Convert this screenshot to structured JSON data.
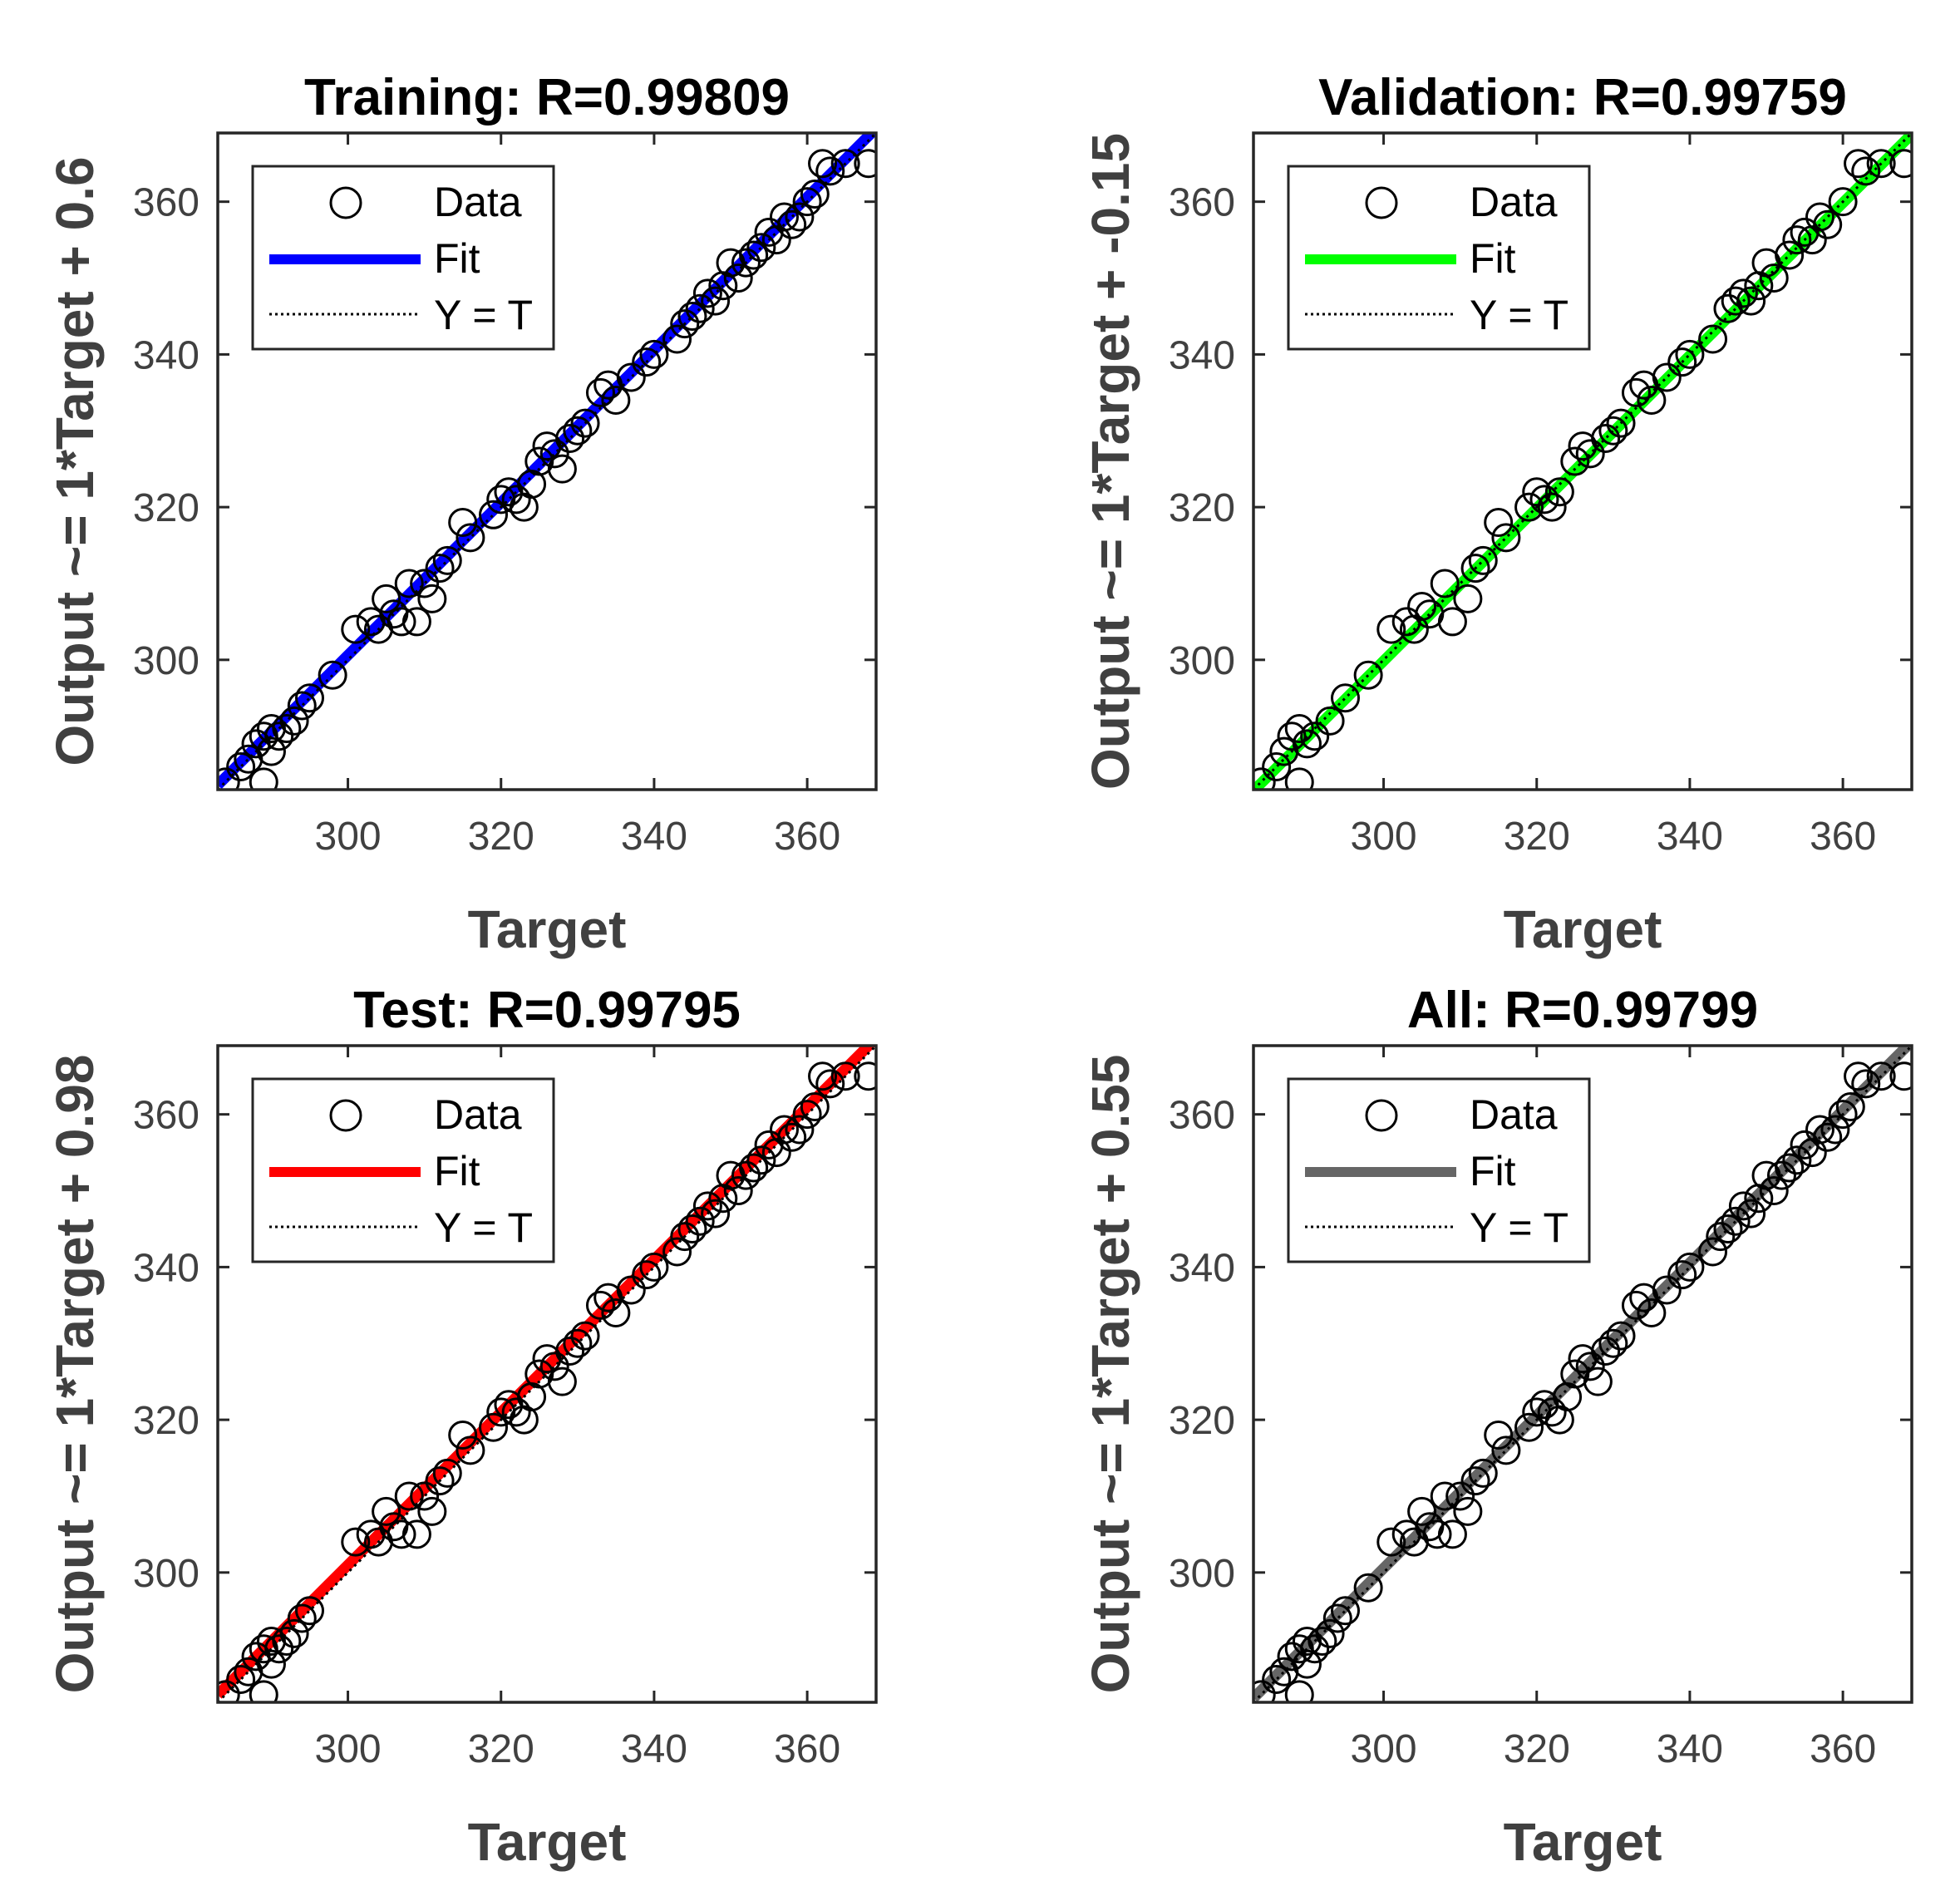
{
  "chart_data": [
    {
      "type": "scatter",
      "title": "Training: R=0.99809",
      "xlabel": "Target",
      "ylabel": "Output ~= 1*Target + 0.6",
      "xlim": [
        283,
        369
      ],
      "ylim": [
        283,
        369
      ],
      "xticks": [
        "300",
        "320",
        "340",
        "360"
      ],
      "yticks": [
        "300",
        "320",
        "340",
        "360"
      ],
      "fit_color": "#0000ff",
      "fit": {
        "slope": 1,
        "intercept": 0.6
      },
      "legend": [
        "Data",
        "Fit",
        "Y = T"
      ],
      "legend_position": "top-left",
      "points": [
        [
          284,
          284
        ],
        [
          286,
          286
        ],
        [
          287,
          287
        ],
        [
          288,
          289
        ],
        [
          289,
          290
        ],
        [
          290,
          291
        ],
        [
          291,
          290
        ],
        [
          290,
          288
        ],
        [
          289,
          284
        ],
        [
          292,
          291
        ],
        [
          293,
          292
        ],
        [
          294,
          294
        ],
        [
          295,
          295
        ],
        [
          298,
          298
        ],
        [
          301,
          304
        ],
        [
          303,
          305
        ],
        [
          304,
          304
        ],
        [
          305,
          308
        ],
        [
          306,
          306
        ],
        [
          307,
          305
        ],
        [
          308,
          310
        ],
        [
          309,
          305
        ],
        [
          310,
          310
        ],
        [
          311,
          308
        ],
        [
          312,
          312
        ],
        [
          313,
          313
        ],
        [
          315,
          318
        ],
        [
          316,
          316
        ],
        [
          319,
          319
        ],
        [
          320,
          321
        ],
        [
          321,
          322
        ],
        [
          322,
          321
        ],
        [
          323,
          320
        ],
        [
          324,
          323
        ],
        [
          325,
          326
        ],
        [
          326,
          328
        ],
        [
          327,
          327
        ],
        [
          328,
          325
        ],
        [
          329,
          329
        ],
        [
          330,
          330
        ],
        [
          331,
          331
        ],
        [
          333,
          335
        ],
        [
          334,
          336
        ],
        [
          335,
          334
        ],
        [
          337,
          337
        ],
        [
          339,
          339
        ],
        [
          340,
          340
        ],
        [
          343,
          342
        ],
        [
          344,
          344
        ],
        [
          345,
          345
        ],
        [
          346,
          346
        ],
        [
          347,
          348
        ],
        [
          348,
          347
        ],
        [
          349,
          349
        ],
        [
          350,
          352
        ],
        [
          351,
          350
        ],
        [
          352,
          352
        ],
        [
          353,
          353
        ],
        [
          354,
          354
        ],
        [
          355,
          356
        ],
        [
          356,
          355
        ],
        [
          357,
          358
        ],
        [
          358,
          357
        ],
        [
          359,
          358
        ],
        [
          360,
          360
        ],
        [
          361,
          361
        ],
        [
          362,
          365
        ],
        [
          363,
          364
        ],
        [
          365,
          365
        ],
        [
          368,
          365
        ]
      ]
    },
    {
      "type": "scatter",
      "title": "Validation: R=0.99759",
      "xlabel": "Target",
      "ylabel": "Output ~= 1*Target + -0.15",
      "xlim": [
        283,
        369
      ],
      "ylim": [
        283,
        369
      ],
      "xticks": [
        "300",
        "320",
        "340",
        "360"
      ],
      "yticks": [
        "300",
        "320",
        "340",
        "360"
      ],
      "fit_color": "#00ff00",
      "fit": {
        "slope": 1,
        "intercept": -0.15
      },
      "legend": [
        "Data",
        "Fit",
        "Y = T"
      ],
      "legend_position": "top-left",
      "points": [
        [
          284,
          284
        ],
        [
          286,
          286
        ],
        [
          287,
          288
        ],
        [
          288,
          290
        ],
        [
          289,
          291
        ],
        [
          290,
          289
        ],
        [
          289,
          284
        ],
        [
          291,
          290
        ],
        [
          293,
          292
        ],
        [
          295,
          295
        ],
        [
          298,
          298
        ],
        [
          301,
          304
        ],
        [
          303,
          305
        ],
        [
          304,
          304
        ],
        [
          305,
          307
        ],
        [
          306,
          306
        ],
        [
          308,
          310
        ],
        [
          309,
          305
        ],
        [
          311,
          308
        ],
        [
          312,
          312
        ],
        [
          313,
          313
        ],
        [
          315,
          318
        ],
        [
          316,
          316
        ],
        [
          319,
          320
        ],
        [
          320,
          322
        ],
        [
          321,
          321
        ],
        [
          322,
          320
        ],
        [
          323,
          322
        ],
        [
          325,
          326
        ],
        [
          326,
          328
        ],
        [
          327,
          327
        ],
        [
          329,
          329
        ],
        [
          330,
          330
        ],
        [
          331,
          331
        ],
        [
          333,
          335
        ],
        [
          334,
          336
        ],
        [
          335,
          334
        ],
        [
          337,
          337
        ],
        [
          339,
          339
        ],
        [
          340,
          340
        ],
        [
          343,
          342
        ],
        [
          345,
          346
        ],
        [
          346,
          347
        ],
        [
          347,
          348
        ],
        [
          348,
          347
        ],
        [
          349,
          349
        ],
        [
          350,
          352
        ],
        [
          351,
          350
        ],
        [
          353,
          353
        ],
        [
          354,
          355
        ],
        [
          355,
          356
        ],
        [
          356,
          355
        ],
        [
          357,
          358
        ],
        [
          358,
          357
        ],
        [
          360,
          360
        ],
        [
          362,
          365
        ],
        [
          363,
          364
        ],
        [
          365,
          365
        ],
        [
          368,
          365
        ]
      ]
    },
    {
      "type": "scatter",
      "title": "Test: R=0.99795",
      "xlabel": "Target",
      "ylabel": "Output ~= 1*Target + 0.98",
      "xlim": [
        283,
        369
      ],
      "ylim": [
        283,
        369
      ],
      "xticks": [
        "300",
        "320",
        "340",
        "360"
      ],
      "yticks": [
        "300",
        "320",
        "340",
        "360"
      ],
      "fit_color": "#ff0000",
      "fit": {
        "slope": 1,
        "intercept": 0.98
      },
      "legend": [
        "Data",
        "Fit",
        "Y = T"
      ],
      "legend_position": "top-left",
      "points": [
        [
          284,
          284
        ],
        [
          286,
          286
        ],
        [
          287,
          287
        ],
        [
          288,
          289
        ],
        [
          289,
          290
        ],
        [
          290,
          291
        ],
        [
          291,
          290
        ],
        [
          290,
          288
        ],
        [
          289,
          284
        ],
        [
          292,
          291
        ],
        [
          293,
          292
        ],
        [
          294,
          294
        ],
        [
          295,
          295
        ],
        [
          301,
          304
        ],
        [
          303,
          305
        ],
        [
          304,
          304
        ],
        [
          305,
          308
        ],
        [
          306,
          306
        ],
        [
          307,
          305
        ],
        [
          308,
          310
        ],
        [
          309,
          305
        ],
        [
          310,
          310
        ],
        [
          311,
          308
        ],
        [
          312,
          312
        ],
        [
          313,
          313
        ],
        [
          315,
          318
        ],
        [
          316,
          316
        ],
        [
          319,
          319
        ],
        [
          320,
          321
        ],
        [
          321,
          322
        ],
        [
          322,
          321
        ],
        [
          323,
          320
        ],
        [
          324,
          323
        ],
        [
          325,
          326
        ],
        [
          326,
          328
        ],
        [
          327,
          327
        ],
        [
          328,
          325
        ],
        [
          329,
          329
        ],
        [
          330,
          330
        ],
        [
          331,
          331
        ],
        [
          333,
          335
        ],
        [
          334,
          336
        ],
        [
          335,
          334
        ],
        [
          337,
          337
        ],
        [
          339,
          339
        ],
        [
          340,
          340
        ],
        [
          343,
          342
        ],
        [
          344,
          344
        ],
        [
          345,
          345
        ],
        [
          346,
          346
        ],
        [
          347,
          348
        ],
        [
          348,
          347
        ],
        [
          349,
          349
        ],
        [
          350,
          352
        ],
        [
          351,
          350
        ],
        [
          352,
          352
        ],
        [
          353,
          353
        ],
        [
          354,
          354
        ],
        [
          355,
          356
        ],
        [
          356,
          355
        ],
        [
          357,
          358
        ],
        [
          358,
          357
        ],
        [
          359,
          358
        ],
        [
          360,
          360
        ],
        [
          361,
          361
        ],
        [
          362,
          365
        ],
        [
          363,
          364
        ],
        [
          365,
          365
        ],
        [
          368,
          365
        ]
      ]
    },
    {
      "type": "scatter",
      "title": "All: R=0.99799",
      "xlabel": "Target",
      "ylabel": "Output ~= 1*Target + 0.55",
      "xlim": [
        283,
        369
      ],
      "ylim": [
        283,
        369
      ],
      "xticks": [
        "300",
        "320",
        "340",
        "360"
      ],
      "yticks": [
        "300",
        "320",
        "340",
        "360"
      ],
      "fit_color": "#666666",
      "fit": {
        "slope": 1,
        "intercept": 0.55
      },
      "legend": [
        "Data",
        "Fit",
        "Y = T"
      ],
      "legend_position": "top-left",
      "points": [
        [
          284,
          284
        ],
        [
          286,
          286
        ],
        [
          287,
          287
        ],
        [
          288,
          289
        ],
        [
          289,
          290
        ],
        [
          290,
          291
        ],
        [
          291,
          290
        ],
        [
          290,
          288
        ],
        [
          289,
          284
        ],
        [
          292,
          291
        ],
        [
          293,
          292
        ],
        [
          294,
          294
        ],
        [
          295,
          295
        ],
        [
          298,
          298
        ],
        [
          301,
          304
        ],
        [
          303,
          305
        ],
        [
          304,
          304
        ],
        [
          305,
          308
        ],
        [
          306,
          306
        ],
        [
          307,
          305
        ],
        [
          308,
          310
        ],
        [
          309,
          305
        ],
        [
          310,
          310
        ],
        [
          311,
          308
        ],
        [
          312,
          312
        ],
        [
          313,
          313
        ],
        [
          315,
          318
        ],
        [
          316,
          316
        ],
        [
          319,
          319
        ],
        [
          320,
          321
        ],
        [
          321,
          322
        ],
        [
          322,
          321
        ],
        [
          323,
          320
        ],
        [
          324,
          323
        ],
        [
          325,
          326
        ],
        [
          326,
          328
        ],
        [
          327,
          327
        ],
        [
          328,
          325
        ],
        [
          329,
          329
        ],
        [
          330,
          330
        ],
        [
          331,
          331
        ],
        [
          333,
          335
        ],
        [
          334,
          336
        ],
        [
          335,
          334
        ],
        [
          337,
          337
        ],
        [
          339,
          339
        ],
        [
          340,
          340
        ],
        [
          343,
          342
        ],
        [
          344,
          344
        ],
        [
          345,
          345
        ],
        [
          346,
          346
        ],
        [
          347,
          348
        ],
        [
          348,
          347
        ],
        [
          349,
          349
        ],
        [
          350,
          352
        ],
        [
          351,
          350
        ],
        [
          352,
          352
        ],
        [
          353,
          353
        ],
        [
          354,
          354
        ],
        [
          355,
          356
        ],
        [
          356,
          355
        ],
        [
          357,
          358
        ],
        [
          358,
          357
        ],
        [
          359,
          358
        ],
        [
          360,
          360
        ],
        [
          361,
          361
        ],
        [
          362,
          365
        ],
        [
          363,
          364
        ],
        [
          365,
          365
        ],
        [
          368,
          365
        ]
      ]
    }
  ]
}
